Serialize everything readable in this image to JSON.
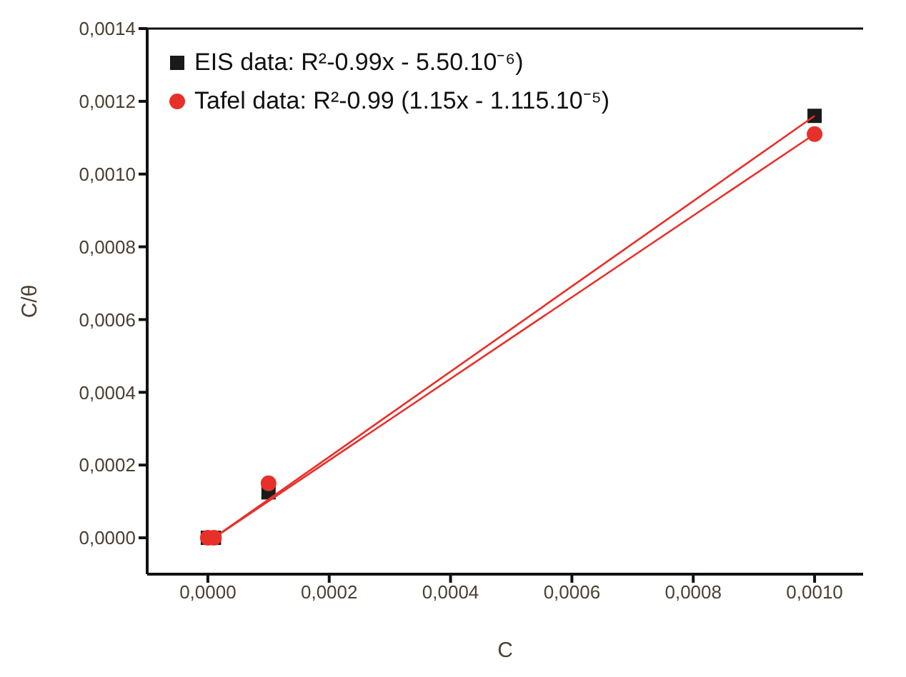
{
  "chart_data": {
    "type": "scatter",
    "xlabel": "C",
    "ylabel": "C/θ",
    "legend": "top left",
    "xlim": [
      -0.0001,
      0.00108
    ],
    "ylim": [
      -0.0001,
      0.0014
    ],
    "xticks": [
      {
        "value": 0,
        "label": "0,0000"
      },
      {
        "value": 0.0002,
        "label": "0,0002"
      },
      {
        "value": 0.0004,
        "label": "0,0004"
      },
      {
        "value": 0.0006,
        "label": "0,0006"
      },
      {
        "value": 0.0008,
        "label": "0,0008"
      },
      {
        "value": 0.001,
        "label": "0,0010"
      }
    ],
    "yticks": [
      {
        "value": 0,
        "label": "0,0000"
      },
      {
        "value": 0.0002,
        "label": "0,0002"
      },
      {
        "value": 0.0004,
        "label": "0,0004"
      },
      {
        "value": 0.0006,
        "label": "0,0006"
      },
      {
        "value": 0.0008,
        "label": "0,0008"
      },
      {
        "value": 0.001,
        "label": "0,0010"
      },
      {
        "value": 0.0012,
        "label": "0,0012"
      },
      {
        "value": 0.0014,
        "label": "0,0014"
      }
    ],
    "series": [
      {
        "name": "EIS data: R²-0.99x - 5.50.10⁻⁶)",
        "color": "#1a1a1a",
        "marker": "square",
        "x": [
          0,
          1e-05,
          0.0001,
          0.001
        ],
        "values": [
          0,
          0,
          0.000125,
          0.00116
        ]
      },
      {
        "name": "Tafel data: R²-0.99 (1.15x - 1.115.10⁻⁵)",
        "color": "#e8302a",
        "marker": "circle",
        "x": [
          0,
          1e-05,
          0.0001,
          0.001
        ],
        "values": [
          0,
          0,
          0.00015,
          0.00111
        ]
      },
      {
        "type": "line",
        "color": "#e8302a",
        "x": [
          1e-05,
          0.001
        ],
        "values": [
          0,
          0.00116
        ]
      },
      {
        "type": "line",
        "color": "#e8302a",
        "x": [
          1e-05,
          0.001
        ],
        "values": [
          0,
          0.00111
        ]
      }
    ]
  }
}
